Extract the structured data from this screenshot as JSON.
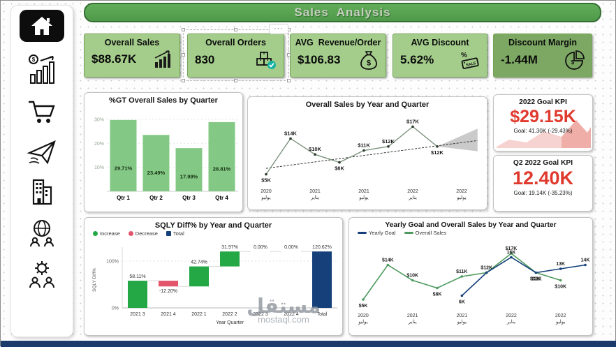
{
  "header": {
    "title": "Sales  Analysis"
  },
  "icons": {
    "more": "···",
    "sale_text": "SALE",
    "dollar": "$",
    "percent": "%"
  },
  "sidebar": {
    "items": [
      "home",
      "sales-stats",
      "cart",
      "shipping",
      "company",
      "global-team",
      "operations"
    ]
  },
  "kpi_cards": [
    {
      "title": "Overall Sales",
      "value": "$88.67K"
    },
    {
      "title": "Overall Orders",
      "value": "830"
    },
    {
      "title": "AVG  Revenue/Order",
      "value": "$106.83"
    },
    {
      "title": "AVG Discount",
      "value": "5.62%"
    },
    {
      "title": "Discount Margin",
      "value": "-1.44M"
    }
  ],
  "goal_kpis": [
    {
      "title": "2022 Goal KPI",
      "value": "$29.15K",
      "subtitle": "Goal: 41.30K (-29.43%)"
    },
    {
      "title": "Q2 2022 Goal KPI",
      "value": "12.40K",
      "subtitle": "Goal: 19.14K (-35.23%)"
    }
  ],
  "watermark": {
    "arabic": "مستقل",
    "domain": "mostaql.com"
  },
  "colors": {
    "kpi_green": "#a4cd8c",
    "kpi_green_dark": "#7da863",
    "header_green": "#4f9a4a",
    "goal_red": "#e0392d",
    "increase_green": "#23a845",
    "decrease_red": "#e2556b",
    "total_navy": "#15407a",
    "sales_line_green": "#4e9a5e"
  },
  "chart_data": [
    {
      "type": "bar",
      "title": "%GT Overall Sales by Quarter",
      "categories": [
        "Qtr 1",
        "Qtr 2",
        "Qtr 3",
        "Qtr 4"
      ],
      "values": [
        29.71,
        23.49,
        17.99,
        28.81
      ],
      "labels": [
        "29.71%",
        "23.49%",
        "17.99%",
        "28.81%"
      ],
      "ylim": [
        0,
        32
      ],
      "yticks": [
        10,
        20,
        30
      ],
      "bar_color": "#84c886"
    },
    {
      "type": "line",
      "title": "Overall Sales by Year and Quarter",
      "x_labels": [
        [
          "2020",
          "يوليو"
        ],
        [
          "2021",
          "يناير"
        ],
        [
          "2021",
          "يوليو"
        ],
        [
          "2022",
          "يناير"
        ],
        [
          "2022",
          "يوليو"
        ]
      ],
      "values": [
        5,
        14,
        10,
        8,
        11,
        12,
        17,
        12
      ],
      "labels": [
        "$5K",
        "$14K",
        "$10K",
        "$8K",
        "$11K",
        "$12K",
        "$17K",
        "$12K"
      ],
      "label_pos": [
        "below",
        "above",
        "above",
        "below",
        "above",
        "above",
        "above",
        "below"
      ],
      "line_color": "#7e937e",
      "marker_color": "#2c3a2c",
      "trend": {
        "start": 6.5,
        "end": 13.5,
        "color": "#333333"
      },
      "forecast": {
        "upper": 16.5,
        "lower": 10.8,
        "color": "#9e9e9e"
      },
      "ylim": [
        3,
        19
      ]
    },
    {
      "type": "waterfall",
      "title": "SQLY Diff% by Year and Quarter",
      "legend": [
        {
          "label": "Increase",
          "color": "#23a845"
        },
        {
          "label": "Decrease",
          "color": "#e2556b"
        },
        {
          "label": "Total",
          "color": "#15407a"
        }
      ],
      "categories": [
        "2021 3",
        "2021 4",
        "2022 1",
        "2022 2",
        "2022 3",
        "2022 4",
        "Total"
      ],
      "values": [
        58.11,
        -12.2,
        42.74,
        31.97,
        0,
        0
      ],
      "total": 120.62,
      "labels": [
        "58.11%",
        "-12.20%",
        "42.74%",
        "31.97%",
        "0.00%",
        "0.00%",
        "120.62%"
      ],
      "ylabel": "SQLY Diff%",
      "xlabel": "Year Quarter",
      "yticks": [
        "0%",
        "100%"
      ]
    },
    {
      "type": "line",
      "title": "Yearly Goal and Overall Sales by Year and Quarter",
      "legend": [
        {
          "label": "Yearly Goal",
          "color": "#15407a"
        },
        {
          "label": "Overall Sales",
          "color": "#4e9a5e"
        }
      ],
      "x_labels": [
        [
          "2020",
          "يوليو"
        ],
        [
          "2021",
          "يناير"
        ],
        [
          "2021",
          "يوليو"
        ],
        [
          "2022",
          "يناير"
        ],
        [
          "2022",
          "يوليو"
        ]
      ],
      "xcount": 10,
      "ylim": [
        3,
        19
      ],
      "series": [
        {
          "name": "Overall Sales",
          "color": "#4e9a5e",
          "x": [
            0,
            1,
            2,
            3,
            4,
            5,
            6,
            7,
            8
          ],
          "values": [
            5,
            14,
            10,
            8,
            11,
            12,
            17,
            12,
            10
          ],
          "labels": [
            "$5K",
            "$14K",
            "$10K",
            "$8K",
            "$11K",
            "$12K",
            "$17K",
            "$12K",
            "$10K"
          ],
          "label_pos": [
            "below",
            "above",
            "above",
            "below",
            "above",
            "above",
            "above",
            "below",
            "below"
          ]
        },
        {
          "name": "Yearly Goal",
          "color": "#15407a",
          "x": [
            4,
            5,
            6,
            7,
            8,
            9
          ],
          "values": [
            6,
            12,
            16,
            12,
            13,
            14
          ],
          "labels": [
            "6K",
            "",
            "16K",
            "12K",
            "13K",
            "14K"
          ],
          "label_pos": [
            "below",
            "",
            "above",
            "below",
            "above",
            "above"
          ]
        }
      ]
    }
  ]
}
